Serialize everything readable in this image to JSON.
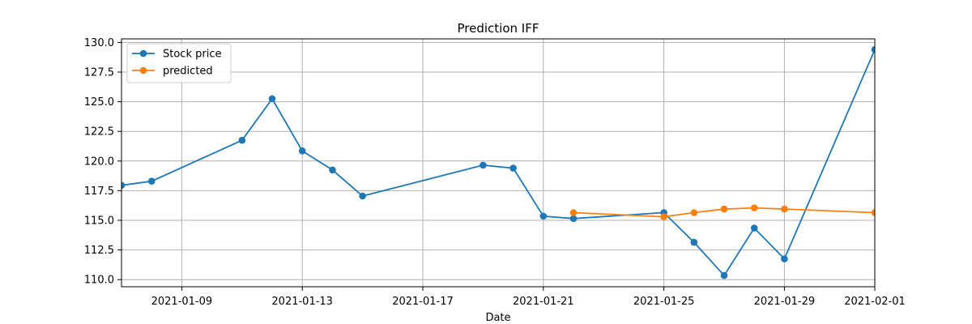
{
  "chart_data": {
    "type": "line",
    "title": "Prediction IFF",
    "xlabel": "Date",
    "ylabel": "",
    "x_type": "date",
    "xlim": [
      "2021-01-07",
      "2021-02-01"
    ],
    "ylim": [
      109.4,
      130.3
    ],
    "xticks": [
      "2021-01-09",
      "2021-01-13",
      "2021-01-17",
      "2021-01-21",
      "2021-01-25",
      "2021-01-29",
      "2021-02-01"
    ],
    "yticks": [
      110.0,
      112.5,
      115.0,
      117.5,
      120.0,
      122.5,
      125.0,
      127.5,
      130.0
    ],
    "grid": true,
    "legend_position": "upper-left",
    "series": [
      {
        "name": "Stock price",
        "color": "#1f77b4",
        "marker": "circle",
        "points": [
          {
            "x": "2021-01-07",
            "y": 117.95
          },
          {
            "x": "2021-01-08",
            "y": 118.3
          },
          {
            "x": "2021-01-11",
            "y": 121.75
          },
          {
            "x": "2021-01-12",
            "y": 125.25
          },
          {
            "x": "2021-01-13",
            "y": 120.85
          },
          {
            "x": "2021-01-14",
            "y": 119.25
          },
          {
            "x": "2021-01-15",
            "y": 117.05
          },
          {
            "x": "2021-01-19",
            "y": 119.65
          },
          {
            "x": "2021-01-20",
            "y": 119.4
          },
          {
            "x": "2021-01-21",
            "y": 115.35
          },
          {
            "x": "2021-01-22",
            "y": 115.15
          },
          {
            "x": "2021-01-25",
            "y": 115.65
          },
          {
            "x": "2021-01-26",
            "y": 113.15
          },
          {
            "x": "2021-01-27",
            "y": 110.35
          },
          {
            "x": "2021-01-28",
            "y": 114.35
          },
          {
            "x": "2021-01-29",
            "y": 111.75
          },
          {
            "x": "2021-02-01",
            "y": 129.4
          }
        ]
      },
      {
        "name": "predicted",
        "color": "#ff7f0e",
        "marker": "circle",
        "points": [
          {
            "x": "2021-01-22",
            "y": 115.65
          },
          {
            "x": "2021-01-25",
            "y": 115.3
          },
          {
            "x": "2021-01-26",
            "y": 115.65
          },
          {
            "x": "2021-01-27",
            "y": 115.95
          },
          {
            "x": "2021-01-28",
            "y": 116.05
          },
          {
            "x": "2021-01-29",
            "y": 115.95
          },
          {
            "x": "2021-02-01",
            "y": 115.65
          }
        ]
      }
    ]
  }
}
